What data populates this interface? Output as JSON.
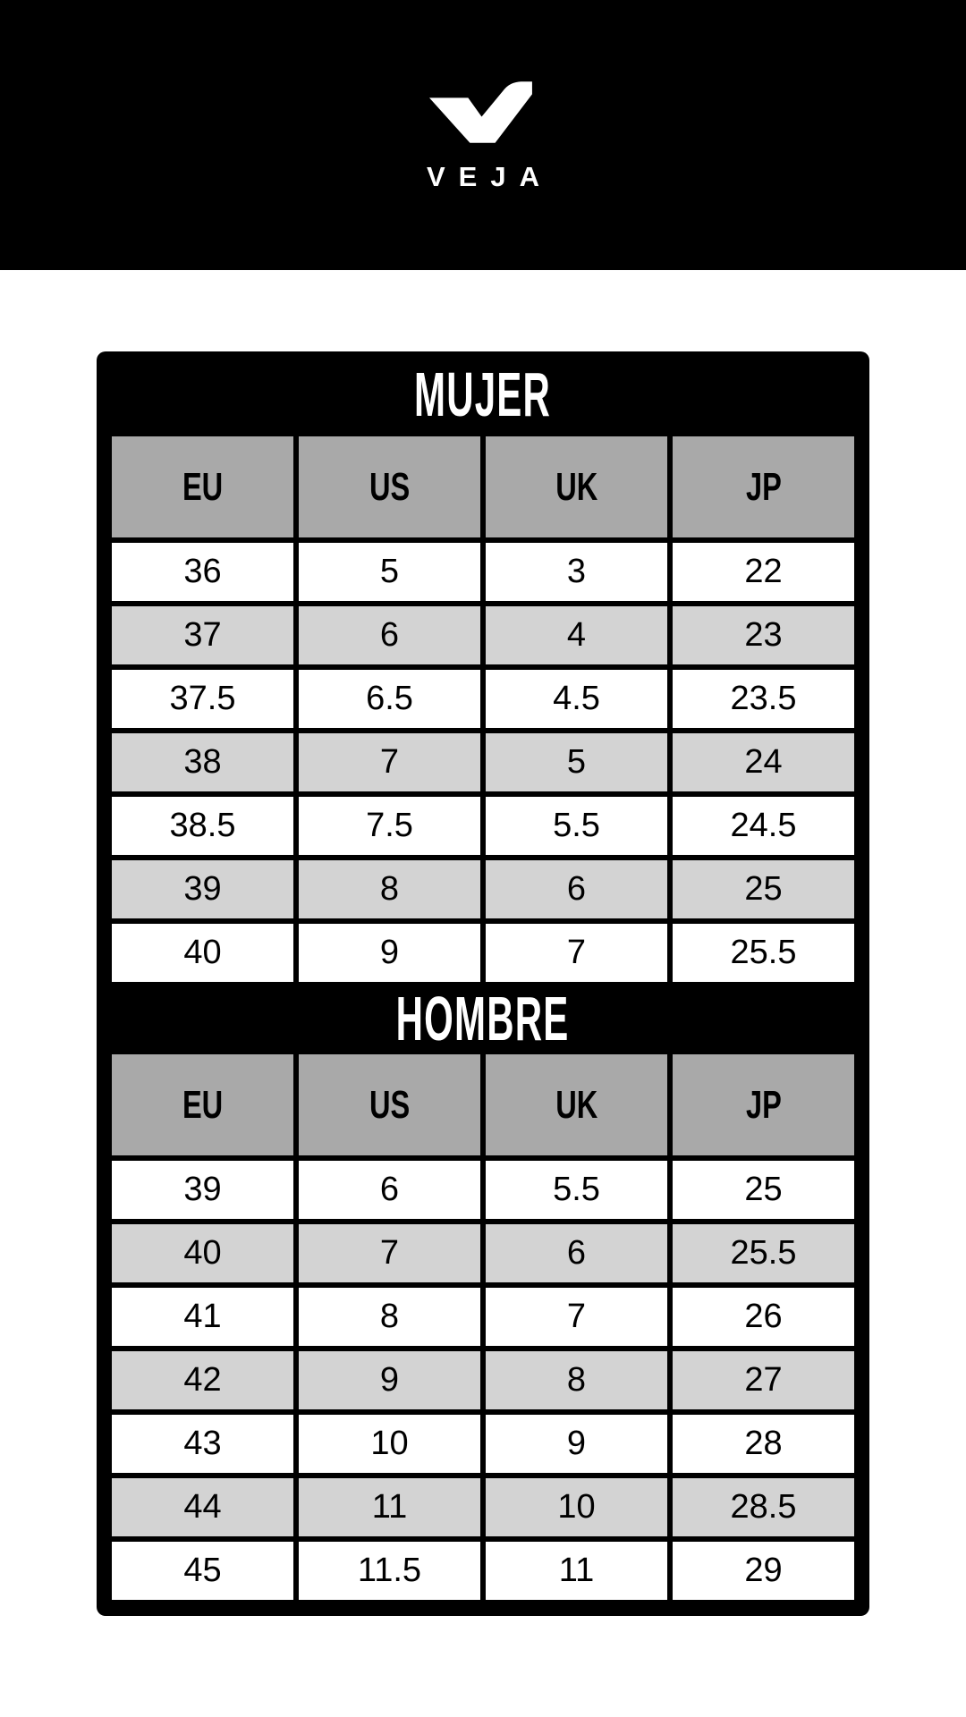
{
  "brand": {
    "logo_text": "VEJA",
    "logo_icon": "veja-check-logo"
  },
  "colors": {
    "banner_bg": "#000000",
    "table_frame": "#000000",
    "section_band_bg": "#000000",
    "section_band_text": "#ffffff",
    "header_cell_bg": "#a9a9a9",
    "row_bg": "#ffffff",
    "alt_row_bg": "#d3d3d3",
    "cell_text": "#000000"
  },
  "tables": [
    {
      "title": "MUJER",
      "columns": [
        "EU",
        "US",
        "UK",
        "JP"
      ],
      "rows": [
        [
          "36",
          "5",
          "3",
          "22"
        ],
        [
          "37",
          "6",
          "4",
          "23"
        ],
        [
          "37.5",
          "6.5",
          "4.5",
          "23.5"
        ],
        [
          "38",
          "7",
          "5",
          "24"
        ],
        [
          "38.5",
          "7.5",
          "5.5",
          "24.5"
        ],
        [
          "39",
          "8",
          "6",
          "25"
        ],
        [
          "40",
          "9",
          "7",
          "25.5"
        ]
      ]
    },
    {
      "title": "HOMBRE",
      "columns": [
        "EU",
        "US",
        "UK",
        "JP"
      ],
      "rows": [
        [
          "39",
          "6",
          "5.5",
          "25"
        ],
        [
          "40",
          "7",
          "6",
          "25.5"
        ],
        [
          "41",
          "8",
          "7",
          "26"
        ],
        [
          "42",
          "9",
          "8",
          "27"
        ],
        [
          "43",
          "10",
          "9",
          "28"
        ],
        [
          "44",
          "11",
          "10",
          "28.5"
        ],
        [
          "45",
          "11.5",
          "11",
          "29"
        ]
      ]
    }
  ]
}
